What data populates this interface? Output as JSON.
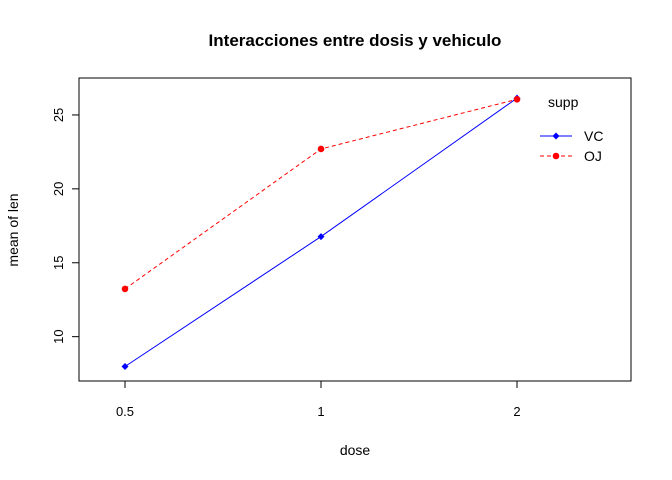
{
  "chart_data": {
    "type": "line",
    "title": "Interacciones entre dosis y vehiculo",
    "xlabel": "dose",
    "ylabel": "mean of  len",
    "categories": [
      "0.5",
      "1",
      "2"
    ],
    "ylim": [
      7.0,
      27.5
    ],
    "y_ticks": [
      10,
      15,
      20,
      25
    ],
    "grid": false,
    "legend": {
      "title": "supp",
      "position": "top-right"
    },
    "series": [
      {
        "name": "VC",
        "values": [
          7.98,
          16.77,
          26.14
        ],
        "color": "#0000ff",
        "line_style": "solid",
        "marker": "diamond"
      },
      {
        "name": "OJ",
        "values": [
          13.23,
          22.7,
          26.06
        ],
        "color": "#ff0000",
        "line_style": "dashed",
        "marker": "circle"
      }
    ]
  }
}
